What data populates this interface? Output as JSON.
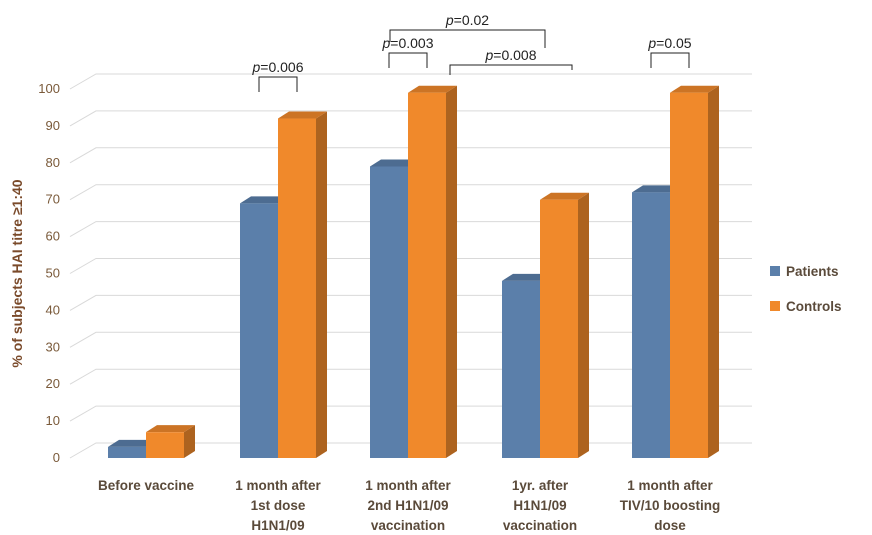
{
  "chart_data": {
    "type": "bar",
    "style": "3d-clustered-column",
    "ylabel": "% of subjects HAI titre ≥1:40",
    "ylim": [
      0,
      100
    ],
    "yticks": [
      0,
      10,
      20,
      30,
      40,
      50,
      60,
      70,
      80,
      90,
      100
    ],
    "grid": true,
    "legend_position": "right",
    "categories": [
      [
        "Before vaccine"
      ],
      [
        "1 month after",
        "1st dose",
        "H1N1/09"
      ],
      [
        "1 month after",
        "2nd H1N1/09",
        "vaccination"
      ],
      [
        "1yr. after",
        "H1N1/09",
        "vaccination"
      ],
      [
        "1 month after",
        "TIV/10 boosting",
        "dose"
      ]
    ],
    "series": [
      {
        "name": "Patients",
        "values": [
          3,
          69,
          79,
          48,
          72
        ],
        "color": "#5b7faa"
      },
      {
        "name": "Controls",
        "values": [
          7,
          92,
          99,
          70,
          99
        ],
        "color": "#f0892b"
      }
    ],
    "annotations": [
      {
        "label": "p=0.006",
        "from": [
          1,
          "Patients"
        ],
        "to": [
          1,
          "Controls"
        ]
      },
      {
        "label": "p=0.003",
        "from": [
          2,
          "Patients"
        ],
        "to": [
          2,
          "Controls"
        ]
      },
      {
        "label": "p=0.02",
        "from": [
          2,
          "Controls"
        ],
        "to": [
          3,
          "Controls"
        ]
      },
      {
        "label": "p=0.008",
        "from": [
          2,
          "Controls"
        ],
        "to": [
          3,
          "Controls"
        ]
      },
      {
        "label": "p=0.05",
        "from": [
          4,
          "Patients"
        ],
        "to": [
          4,
          "Controls"
        ]
      }
    ]
  }
}
